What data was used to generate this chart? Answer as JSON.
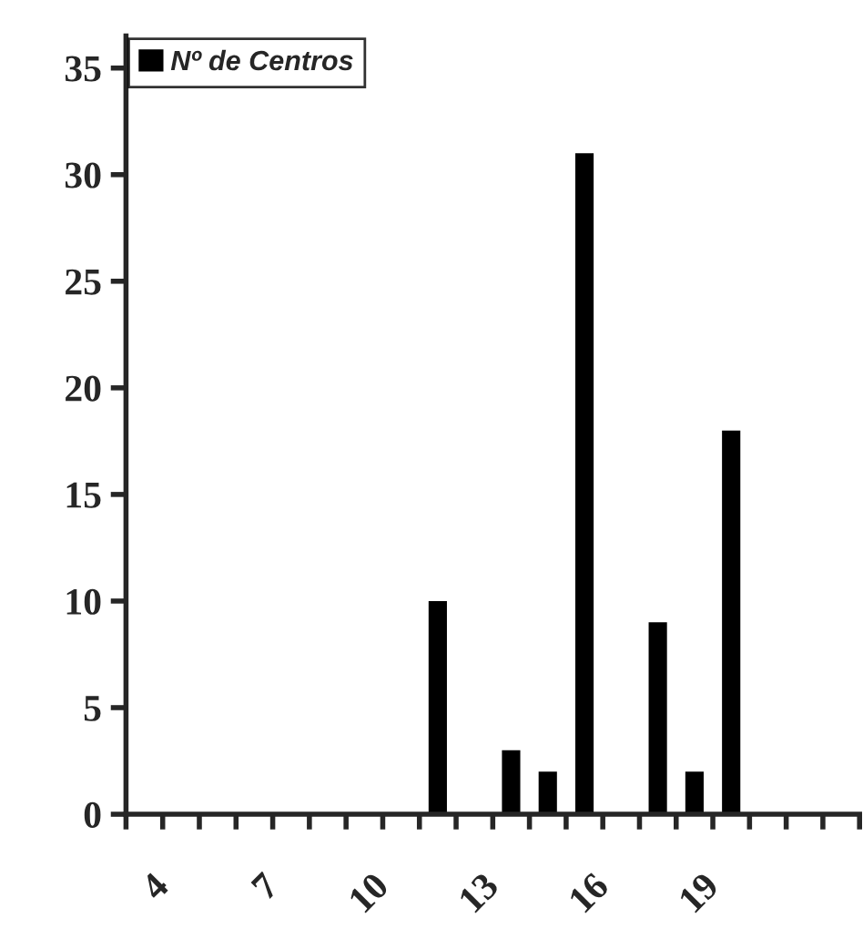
{
  "chart_data": {
    "type": "bar",
    "categories": [
      "4",
      null,
      null,
      "7",
      null,
      null,
      "10",
      null,
      null,
      "13",
      null,
      null,
      "16",
      null,
      null,
      "19",
      null,
      null,
      null,
      null
    ],
    "series": [
      {
        "name": "Nº de Centros",
        "color": "#000000",
        "values": [
          0,
          0,
          0,
          0,
          0,
          0,
          0,
          0,
          10,
          0,
          3,
          2,
          31,
          0,
          9,
          2,
          18,
          0,
          0,
          0
        ]
      }
    ],
    "ylim": [
      0,
      36.5
    ],
    "yticks": [
      0,
      5,
      10,
      15,
      20,
      25,
      30,
      35
    ],
    "grid": false,
    "legend": "top left"
  }
}
